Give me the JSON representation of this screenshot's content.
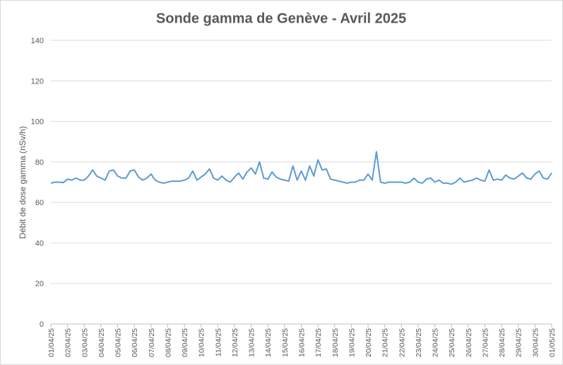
{
  "chart_data": {
    "type": "line",
    "title": "Sonde gamma de Genève - Avril 2025",
    "y_label": "Débit de dose gamma (nSv/h)",
    "xlim": [
      0,
      30
    ],
    "xticks": [
      {
        "value": 0,
        "label": "01/04/25"
      },
      {
        "value": 1,
        "label": "02/04/25"
      },
      {
        "value": 2,
        "label": "03/04/25"
      },
      {
        "value": 3,
        "label": "04/04/25"
      },
      {
        "value": 4,
        "label": "05/04/25"
      },
      {
        "value": 5,
        "label": "06/04/25"
      },
      {
        "value": 6,
        "label": "07/04/25"
      },
      {
        "value": 7,
        "label": "08/04/25"
      },
      {
        "value": 8,
        "label": "09/04/25"
      },
      {
        "value": 9,
        "label": "10/04/25"
      },
      {
        "value": 10,
        "label": "11/04/25"
      },
      {
        "value": 11,
        "label": "12/04/25"
      },
      {
        "value": 12,
        "label": "13/04/25"
      },
      {
        "value": 13,
        "label": "14/04/25"
      },
      {
        "value": 14,
        "label": "15/04/25"
      },
      {
        "value": 15,
        "label": "16/04/25"
      },
      {
        "value": 16,
        "label": "17/04/25"
      },
      {
        "value": 17,
        "label": "18/04/25"
      },
      {
        "value": 18,
        "label": "19/04/25"
      },
      {
        "value": 19,
        "label": "20/04/25"
      },
      {
        "value": 20,
        "label": "21/04/25"
      },
      {
        "value": 21,
        "label": "22/04/25"
      },
      {
        "value": 22,
        "label": "23/04/25"
      },
      {
        "value": 23,
        "label": "24/04/25"
      },
      {
        "value": 24,
        "label": "25/04/25"
      },
      {
        "value": 25,
        "label": "26/04/25"
      },
      {
        "value": 26,
        "label": "27/04/25"
      },
      {
        "value": 27,
        "label": "28/04/25"
      },
      {
        "value": 28,
        "label": "29/04/25"
      },
      {
        "value": 29,
        "label": "30/04/25"
      },
      {
        "value": 30,
        "label": "01/05/25"
      }
    ],
    "ylim": [
      0,
      140
    ],
    "yticks": [
      0,
      20,
      40,
      60,
      80,
      100,
      120,
      140
    ],
    "grid": true,
    "x": [
      0,
      0.25,
      0.5,
      0.75,
      1,
      1.25,
      1.5,
      1.75,
      2,
      2.25,
      2.5,
      2.75,
      3,
      3.25,
      3.5,
      3.75,
      4,
      4.25,
      4.5,
      4.75,
      5,
      5.25,
      5.5,
      5.75,
      6,
      6.25,
      6.5,
      6.75,
      7,
      7.25,
      7.5,
      7.75,
      8,
      8.25,
      8.5,
      8.75,
      9,
      9.25,
      9.5,
      9.75,
      10,
      10.25,
      10.5,
      10.75,
      11,
      11.25,
      11.5,
      11.75,
      12,
      12.25,
      12.5,
      12.75,
      13,
      13.25,
      13.5,
      13.75,
      14,
      14.25,
      14.5,
      14.75,
      15,
      15.25,
      15.5,
      15.75,
      16,
      16.25,
      16.5,
      16.75,
      17,
      17.25,
      17.5,
      17.75,
      18,
      18.25,
      18.5,
      18.75,
      19,
      19.25,
      19.5,
      19.75,
      20,
      20.25,
      20.5,
      20.75,
      21,
      21.25,
      21.5,
      21.75,
      22,
      22.25,
      22.5,
      22.75,
      23,
      23.25,
      23.5,
      23.75,
      24,
      24.25,
      24.5,
      24.75,
      25,
      25.25,
      25.5,
      25.75,
      26,
      26.25,
      26.5,
      26.75,
      27,
      27.25,
      27.5,
      27.75,
      28,
      28.25,
      28.5,
      28.75,
      29,
      29.25,
      29.5,
      29.75,
      30
    ],
    "series": [
      {
        "color": "#5b9bd5",
        "values": [
          69.5,
          70,
          70,
          69.8,
          71.5,
          71,
          72,
          71,
          71,
          73,
          76,
          73,
          72,
          71,
          75.5,
          76,
          73,
          72,
          72,
          75.5,
          76,
          72.5,
          71,
          72,
          74,
          71,
          70,
          69.5,
          70,
          70.5,
          70.5,
          70.5,
          71,
          72,
          75.5,
          71,
          72.5,
          74,
          76.5,
          72,
          71,
          73,
          71,
          70,
          72.5,
          74.5,
          71.5,
          75,
          77,
          74,
          80,
          72,
          71.5,
          75,
          72.5,
          71.5,
          71,
          70.5,
          78,
          71,
          75.5,
          71,
          78,
          73,
          81,
          76,
          76.5,
          71.5,
          71,
          70.5,
          70,
          69.5,
          70,
          70,
          71,
          71,
          74,
          71,
          85,
          70,
          69.5,
          70,
          70,
          70,
          70,
          69.5,
          70,
          72,
          70,
          69.5,
          71.5,
          72,
          70,
          71,
          69.5,
          69.5,
          69,
          70,
          72,
          70,
          70.5,
          71,
          72,
          71,
          70.5,
          76,
          71,
          71.5,
          71,
          73.5,
          72,
          71.5,
          73,
          74.5,
          72,
          71.5,
          74,
          75.5,
          72,
          71.5,
          74.5
        ]
      }
    ]
  }
}
